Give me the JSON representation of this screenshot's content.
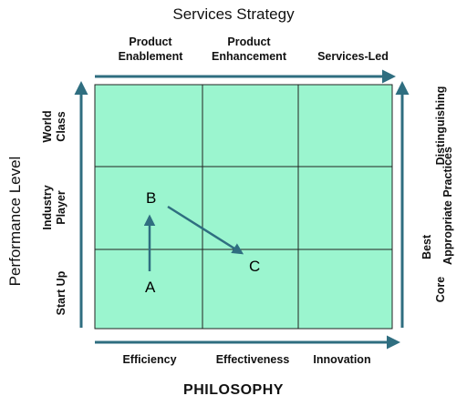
{
  "title_top": "Services Strategy",
  "title_bottom": "PHILOSOPHY",
  "title_left": "Performance  Level",
  "top_labels": [
    {
      "line1": "Product",
      "line2": "Enablement"
    },
    {
      "line1": "Product",
      "line2": "Enhancement"
    },
    {
      "line1": "",
      "line2": "Services-Led"
    }
  ],
  "bottom_labels": [
    "Efficiency",
    "Effectiveness",
    "Innovation"
  ],
  "left_labels": [
    {
      "line1": "World",
      "line2": "Class"
    },
    {
      "line1": "Industry",
      "line2": "Player"
    },
    {
      "line1": "",
      "line2": "Start Up"
    }
  ],
  "right_labels": [
    {
      "line1": "",
      "line2": "Distinguishing"
    },
    {
      "line1": "Best",
      "line2": "Appropriate Practices"
    },
    {
      "line1": "",
      "line2": "Core"
    }
  ],
  "points": {
    "a": "A",
    "b": "B",
    "c": "C"
  },
  "colors": {
    "grid_fill": "#9bf5cf",
    "arrow": "#2f6e80",
    "grid_line": "#222222"
  }
}
